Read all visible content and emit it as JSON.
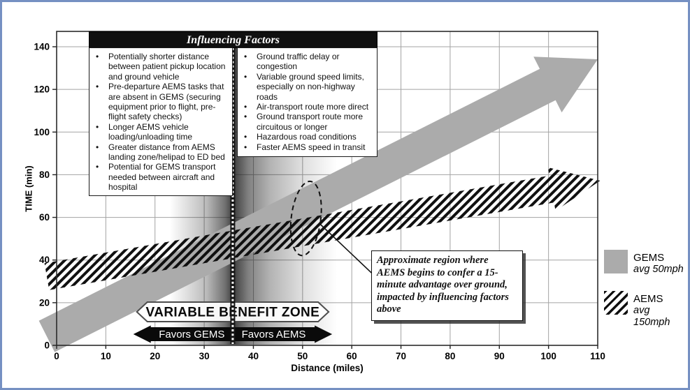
{
  "frame": {
    "border_color": "#7590c2",
    "background": "#ffffff"
  },
  "factors": {
    "title": "Influencing Factors",
    "left_column": [
      "Potentially shorter distance between patient pickup location and ground vehicle",
      "Pre-departure AEMS tasks that are absent in GEMS (securing equipment prior to flight, pre-flight safety checks)",
      "Longer AEMS vehicle loading/unloading time",
      "Greater distance from AEMS landing zone/helipad to ED bed",
      "Potential for GEMS transport needed between aircraft and hospital"
    ],
    "right_column": [
      "Ground traffic delay or congestion",
      "Variable ground speed limits, especially on non-highway roads",
      "Air-transport route more direct",
      "Ground transport route more circuitous or longer",
      "Hazardous road conditions",
      "Faster AEMS speed in transit"
    ]
  },
  "legend": {
    "items": [
      {
        "name": "GEMS",
        "speed": "avg 50mph",
        "swatch": "solid",
        "color": "#ababab"
      },
      {
        "name": "AEMS",
        "speed": "avg 150mph",
        "swatch": "hatched",
        "color": "#101010"
      }
    ]
  },
  "chart_data": {
    "type": "area",
    "title": "",
    "x_axis": {
      "label": "Distance (miles)",
      "min": 0,
      "max": 110,
      "tick_step": 10
    },
    "y_axis": {
      "label": "TIME (min)",
      "min": 0,
      "max": 140,
      "tick_step": 20
    },
    "grid": true,
    "series": [
      {
        "name": "GEMS",
        "note": "avg 50mph",
        "style": "solid-arrow",
        "color": "#ababab",
        "band": {
          "x_from": -2,
          "t_from": 4.2,
          "x_to": 110,
          "t_to": 134.1,
          "halfwidth_min": 9.2,
          "head_halfwidth_min": 16.4,
          "head_length_miles": 11.4
        }
      },
      {
        "name": "AEMS",
        "note": "avg 150mph",
        "style": "hatched-arrow",
        "color": "#101010",
        "band": {
          "x_from": -2,
          "t_from": 32.2,
          "x_to": 110.5,
          "t_to": 77.2,
          "halfwidth_min": 6.5,
          "head_halfwidth_min": 10.5,
          "head_length_miles": 10
        }
      }
    ],
    "variable_benefit_zone": {
      "label": "VARIABLE BENEFIT ZONE",
      "x_start_miles": 16.3,
      "x_end_miles": 55.3,
      "divider_x_miles": 35.8,
      "favors_left": "Favors GEMS",
      "favors_right": "Favors AEMS",
      "shading": {
        "x_start_miles": 23,
        "x_end_miles": 57,
        "peak_offset": 0.38
      }
    },
    "approx_region": {
      "x_miles": 50.7,
      "t_min": 59.5,
      "rx_miles": 3,
      "ry_min": 17.5,
      "tilt_deg": 7,
      "leader_from": [
        53.5,
        57.0
      ],
      "leader_to": [
        64.0,
        34.0
      ]
    },
    "annotation": {
      "text": "Approximate region where AEMS begins to confer a 15-minute advantage over ground, impacted by influencing factors above"
    },
    "gridline_color": "#a3a3a3",
    "axis_color": "#2b2b2b"
  }
}
